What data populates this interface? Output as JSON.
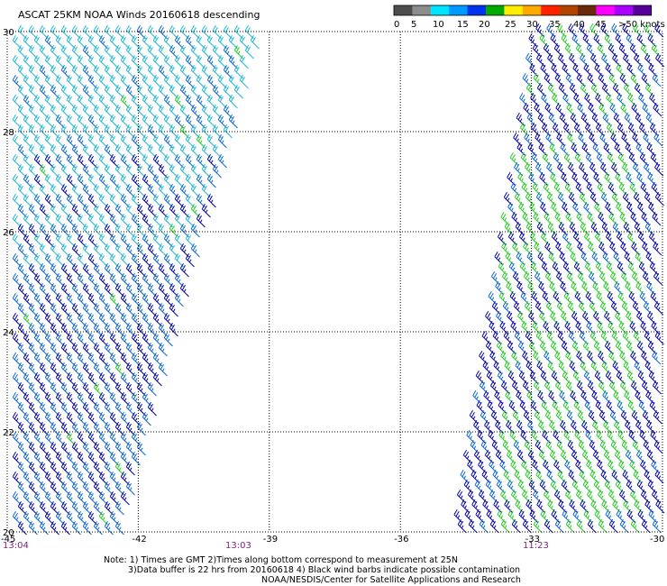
{
  "title": "ASCAT 25KM NOAA Winds 20160618 descending",
  "legend": {
    "labels": [
      "0",
      "5",
      "10",
      "15",
      "20",
      "25",
      "30",
      "35",
      "40",
      "45",
      ">50 knots"
    ],
    "colors": [
      "#4d4d4d",
      "#8c8c8c",
      "#00e5ff",
      "#0099ff",
      "#0033ee",
      "#00aa00",
      "#ffee00",
      "#ffaa00",
      "#ff2200",
      "#b34400",
      "#6a2a0a",
      "#ff00ff",
      "#aa00ff",
      "#550099"
    ]
  },
  "axes": {
    "lon_labels": [
      "-45",
      "-42",
      "-39",
      "-36",
      "-33",
      "-30"
    ],
    "lat_labels": [
      "30",
      "28",
      "26",
      "24",
      "22",
      "20"
    ],
    "lon_range": [
      -45,
      -30
    ],
    "lat_range": [
      20,
      30
    ]
  },
  "pass_times": [
    "13:04",
    "13:03",
    "11:23"
  ],
  "notes": {
    "line1": "Note: 1) Times are GMT 2)Times along bottom correspond to measurement at 25N",
    "line2": "3)Data buffer is 22 hrs from 20160618 4) Black wind barbs indicate possible contamination",
    "line3": "NOAA/NESDIS/Center for Satellite Applications and Research"
  },
  "colors": {
    "grid": "#000000",
    "time_label": "#7a1f7a",
    "barb_light": "#19b8d8",
    "barb_mid": "#0a64d8",
    "barb_dark": "#0000aa",
    "barb_green": "#22cc22"
  },
  "swaths": [
    {
      "name": "west",
      "lon_west_top": -45,
      "lon_east_top": -39.1,
      "lon_east_bottom": -42.3,
      "direction_deg": 225,
      "dominant": "mid"
    },
    {
      "name": "east",
      "lon_west_top": -32.9,
      "lon_west_bottom": -34.7,
      "lon_east": -30,
      "direction_deg": 225,
      "dominant": "dark"
    }
  ]
}
